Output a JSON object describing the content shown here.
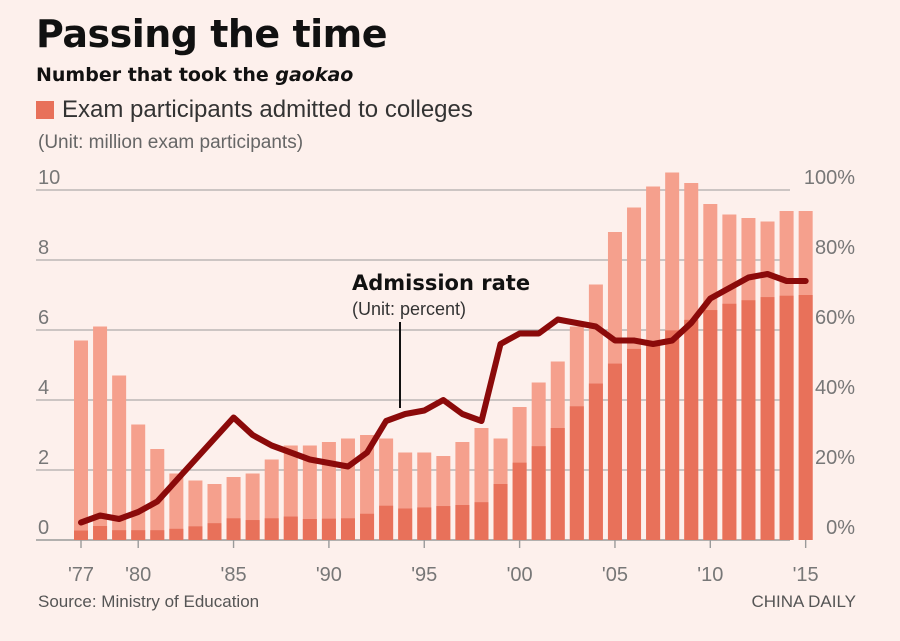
{
  "header": {
    "title": "Passing the time",
    "subtitle_prefix": "Number that took the ",
    "subtitle_italic": "gaokao",
    "legend_label": "Exam participants admitted to colleges",
    "unit": "(Unit: million exam participants)"
  },
  "footer": {
    "source": "Source: Ministry of Education",
    "credit": "CHINA DAILY"
  },
  "annotation": {
    "title": "Admission rate",
    "unit": "(Unit: percent)"
  },
  "colors": {
    "taken": "#f5a08d",
    "admitted": "#e8715a",
    "rate_line": "#8b0a0a",
    "grid": "#9a9a9a"
  },
  "chart_data": {
    "type": "bar",
    "title": "Passing the time",
    "subtitle": "Number that took the gaokao",
    "years": [
      1977,
      1978,
      1979,
      1980,
      1981,
      1982,
      1983,
      1984,
      1985,
      1986,
      1987,
      1988,
      1989,
      1990,
      1991,
      1992,
      1993,
      1994,
      1995,
      1996,
      1997,
      1998,
      1999,
      2000,
      2001,
      2002,
      2003,
      2004,
      2005,
      2006,
      2007,
      2008,
      2009,
      2010,
      2011,
      2012,
      2013,
      2014,
      2015
    ],
    "series": [
      {
        "name": "Number that took the gaokao",
        "axis": "left",
        "unit": "million exam participants",
        "values": [
          5.7,
          6.1,
          4.7,
          3.3,
          2.6,
          1.9,
          1.7,
          1.6,
          1.8,
          1.9,
          2.3,
          2.7,
          2.7,
          2.8,
          2.9,
          3.0,
          2.9,
          2.5,
          2.5,
          2.4,
          2.8,
          3.2,
          2.9,
          3.8,
          4.5,
          5.1,
          6.1,
          7.3,
          8.8,
          9.5,
          10.1,
          10.5,
          10.2,
          9.6,
          9.3,
          9.2,
          9.1,
          9.4,
          9.4
        ]
      },
      {
        "name": "Exam participants admitted to colleges",
        "axis": "left",
        "unit": "million exam participants",
        "values": [
          0.27,
          0.4,
          0.28,
          0.28,
          0.28,
          0.32,
          0.39,
          0.48,
          0.62,
          0.57,
          0.62,
          0.67,
          0.6,
          0.61,
          0.62,
          0.75,
          0.98,
          0.9,
          0.93,
          0.97,
          1.0,
          1.08,
          1.6,
          2.21,
          2.68,
          3.2,
          3.82,
          4.47,
          5.04,
          5.46,
          5.66,
          5.99,
          6.29,
          6.57,
          6.75,
          6.85,
          6.94,
          6.98,
          7.0
        ]
      },
      {
        "name": "Admission rate",
        "type": "line",
        "axis": "right",
        "unit": "percent",
        "values": [
          5,
          7,
          6,
          8,
          11,
          17,
          23,
          29,
          35,
          30,
          27,
          25,
          23,
          22,
          21,
          25,
          34,
          36,
          37,
          40,
          36,
          34,
          56,
          59,
          59,
          63,
          62,
          61,
          57,
          57,
          56,
          57,
          62,
          69,
          72,
          75,
          76,
          74,
          74
        ]
      }
    ],
    "x_ticks": [
      "'77",
      "'80",
      "'85",
      "'90",
      "'95",
      "'00",
      "'05",
      "'10",
      "'15"
    ],
    "x_tick_years": [
      1977,
      1980,
      1985,
      1990,
      1995,
      2000,
      2005,
      2010,
      2015
    ],
    "y_left_ticks": [
      "0",
      "2",
      "4",
      "6",
      "8",
      "10"
    ],
    "y_left_range": [
      0,
      10.7
    ],
    "y_right_ticks": [
      "0%",
      "20%",
      "40%",
      "60%",
      "80%",
      "100%"
    ],
    "y_right_range": [
      0,
      107
    ],
    "ylabel": "(Unit: million exam participants)",
    "grid": true
  }
}
